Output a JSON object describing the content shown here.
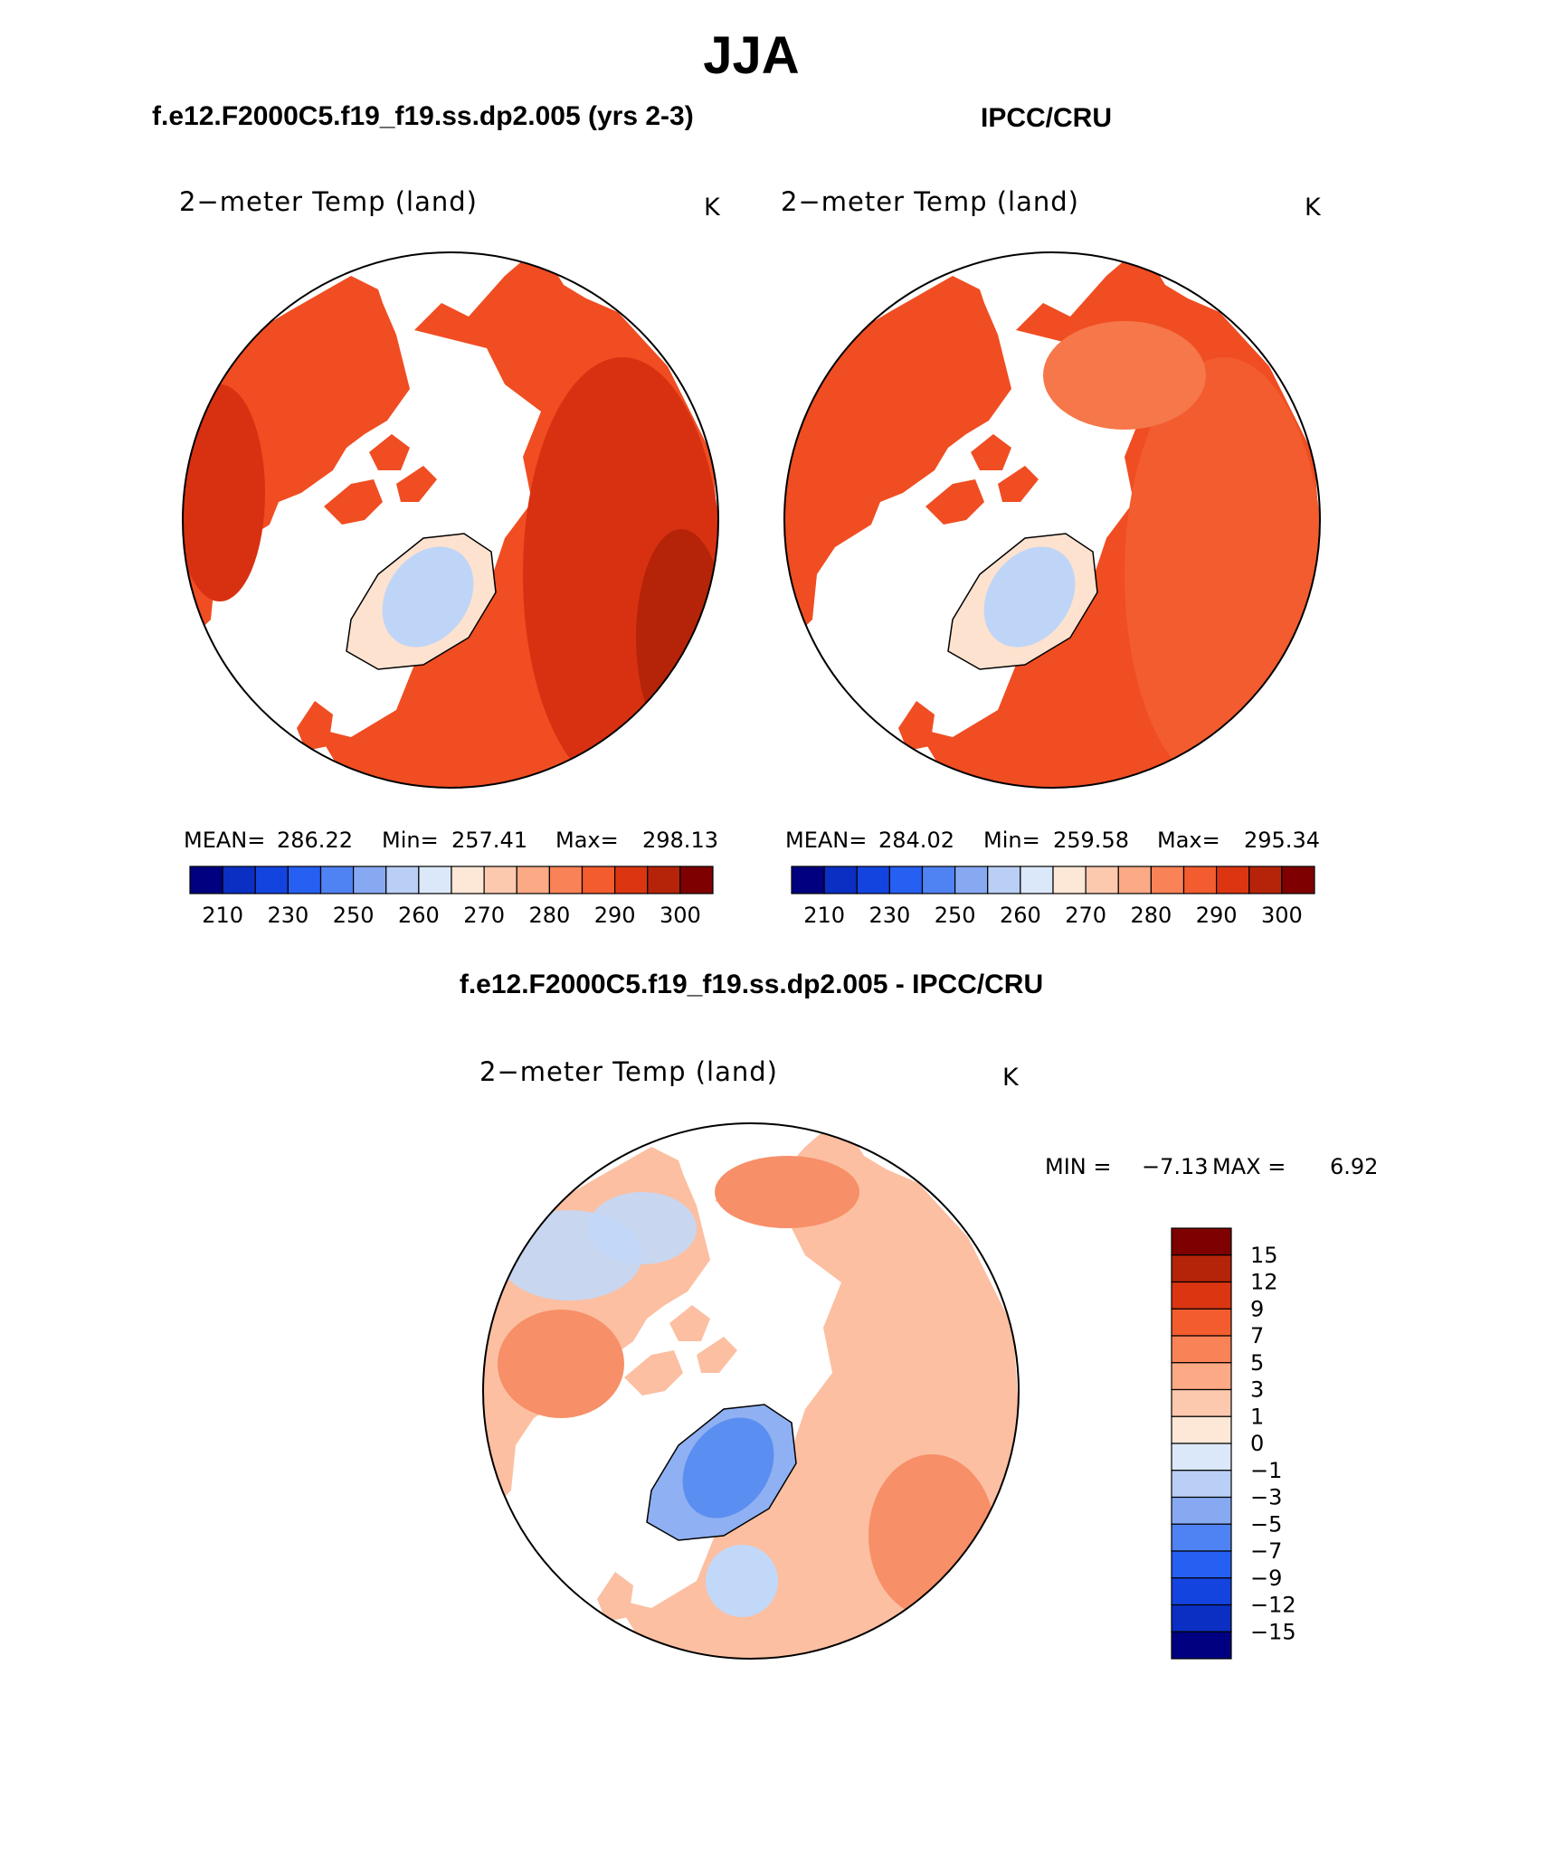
{
  "main_title": "JJA",
  "left_subtitle": "f.e12.F2000C5.f19_f19.ss.dp2.005 (yrs 2-3)",
  "right_subtitle": "IPCC/CRU",
  "bottom_subtitle": "f.e12.F2000C5.f19_f19.ss.dp2.005 - IPCC/CRU",
  "colors": {
    "land_warm": "#f04d22",
    "land_hot": "#d83112",
    "land_mid": "#f5774a",
    "ice_sheet": "#bfd5f7",
    "ice_edge": "#fde2cf",
    "diff_base": "#fcbfa1",
    "diff_warm": "#f78f68",
    "diff_cool": "#c2d8f8",
    "diff_cold": "#5a8ef0"
  },
  "chart_data": [
    {
      "type": "heatmap",
      "projection": "north-polar-stereographic",
      "title": "2−meter Temp (land)",
      "units": "K",
      "stats": {
        "mean_label": "MEAN=",
        "mean": "286.22",
        "min_label": "Min=",
        "min": "257.41",
        "max_label": "Max=",
        "max": "298.13"
      },
      "colorbar": {
        "orientation": "horizontal",
        "colors": [
          "#000080",
          "#0a2fc2",
          "#1444e0",
          "#2660f2",
          "#4f82f2",
          "#86a9f2",
          "#b9cff5",
          "#dbe8fa",
          "#fde8d8",
          "#fcc9ae",
          "#fca985",
          "#f98356",
          "#f25c2e",
          "#dc3512",
          "#b52408",
          "#7f0000"
        ],
        "tick_labels": [
          "210",
          "230",
          "250",
          "260",
          "270",
          "280",
          "290",
          "300"
        ]
      }
    },
    {
      "type": "heatmap",
      "projection": "north-polar-stereographic",
      "title": "2−meter Temp (land)",
      "units": "K",
      "stats": {
        "mean_label": "MEAN=",
        "mean": "284.02",
        "min_label": "Min=",
        "min": "259.58",
        "max_label": "Max=",
        "max": "295.34"
      },
      "colorbar": {
        "orientation": "horizontal",
        "colors": [
          "#000080",
          "#0a2fc2",
          "#1444e0",
          "#2660f2",
          "#4f82f2",
          "#86a9f2",
          "#b9cff5",
          "#dbe8fa",
          "#fde8d8",
          "#fcc9ae",
          "#fca985",
          "#f98356",
          "#f25c2e",
          "#dc3512",
          "#b52408",
          "#7f0000"
        ],
        "tick_labels": [
          "210",
          "230",
          "250",
          "260",
          "270",
          "280",
          "290",
          "300"
        ]
      }
    },
    {
      "type": "heatmap",
      "projection": "north-polar-stereographic",
      "title": "2−meter Temp (land)",
      "units": "K",
      "stats": {
        "min_label": "MIN =",
        "min": "−7.13",
        "max_label": "MAX =",
        "max": "6.92"
      },
      "colorbar": {
        "orientation": "vertical",
        "colors": [
          "#7f0000",
          "#b52408",
          "#dc3512",
          "#f25c2e",
          "#f98356",
          "#fca985",
          "#fcc9ae",
          "#fde8d8",
          "#dbe8fa",
          "#b9cff5",
          "#86a9f2",
          "#4f82f2",
          "#2660f2",
          "#1444e0",
          "#0a2fc2",
          "#000080"
        ],
        "tick_labels": [
          "15",
          "12",
          "9",
          "7",
          "5",
          "3",
          "1",
          "0",
          "−1",
          "−3",
          "−5",
          "−7",
          "−9",
          "−12",
          "−15"
        ]
      }
    }
  ]
}
